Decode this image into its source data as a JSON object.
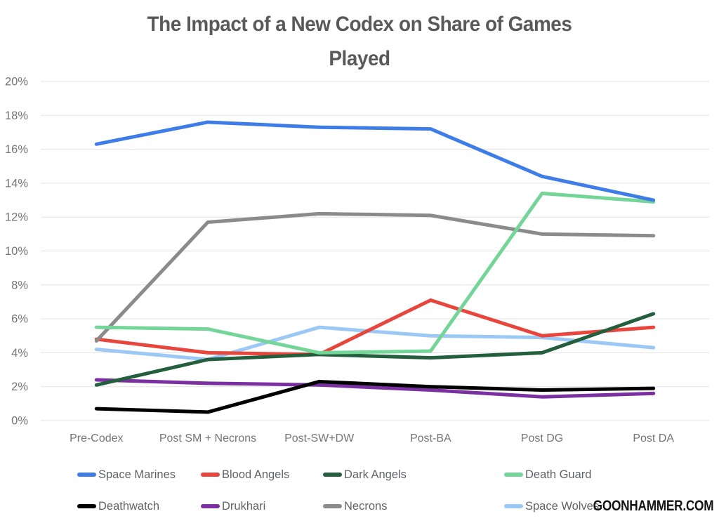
{
  "watermark": "GOONHAMMER.COM",
  "chart_data": {
    "type": "line",
    "title": "The Impact of a New Codex on Share of Games Played",
    "title_lines": [
      "The Impact of a New Codex on Share of Games",
      "Played"
    ],
    "xlabel": "",
    "ylabel": "",
    "ylim": [
      0,
      20
    ],
    "ytick_step": 2,
    "ytick_labels": [
      "0%",
      "2%",
      "4%",
      "6%",
      "8%",
      "10%",
      "12%",
      "14%",
      "16%",
      "18%",
      "20%"
    ],
    "grid": "horizontal",
    "gridline_color": "#e3e3e3",
    "axis_label_color": "#757575",
    "legend_position": "bottom",
    "categories": [
      "Pre-Codex",
      "Post SM + Necrons",
      "Post-SW+DW",
      "Post-BA",
      "Post DG",
      "Post DA"
    ],
    "series": [
      {
        "name": "Space Marines",
        "color": "#3e7de8",
        "values": [
          16.3,
          17.6,
          17.3,
          17.2,
          14.4,
          13.0
        ]
      },
      {
        "name": "Blood Angels",
        "color": "#e8463c",
        "values": [
          4.8,
          4.0,
          3.9,
          7.1,
          5.0,
          5.5
        ]
      },
      {
        "name": "Dark Angels",
        "color": "#235e3d",
        "values": [
          2.1,
          3.6,
          3.9,
          3.7,
          4.0,
          6.3
        ]
      },
      {
        "name": "Death Guard",
        "color": "#74d598",
        "values": [
          5.5,
          5.4,
          4.0,
          4.1,
          13.4,
          12.9
        ]
      },
      {
        "name": "Deathwatch",
        "color": "#000000",
        "values": [
          0.7,
          0.5,
          2.3,
          2.0,
          1.8,
          1.9
        ]
      },
      {
        "name": "Drukhari",
        "color": "#7a30a0",
        "values": [
          2.4,
          2.2,
          2.1,
          1.8,
          1.4,
          1.6
        ]
      },
      {
        "name": "Necrons",
        "color": "#8b8b8b",
        "values": [
          4.7,
          11.7,
          12.2,
          12.1,
          11.0,
          10.9
        ]
      },
      {
        "name": "Space Wolves",
        "color": "#9cc8f6",
        "values": [
          4.2,
          3.6,
          5.5,
          5.0,
          4.9,
          4.3
        ]
      }
    ]
  }
}
